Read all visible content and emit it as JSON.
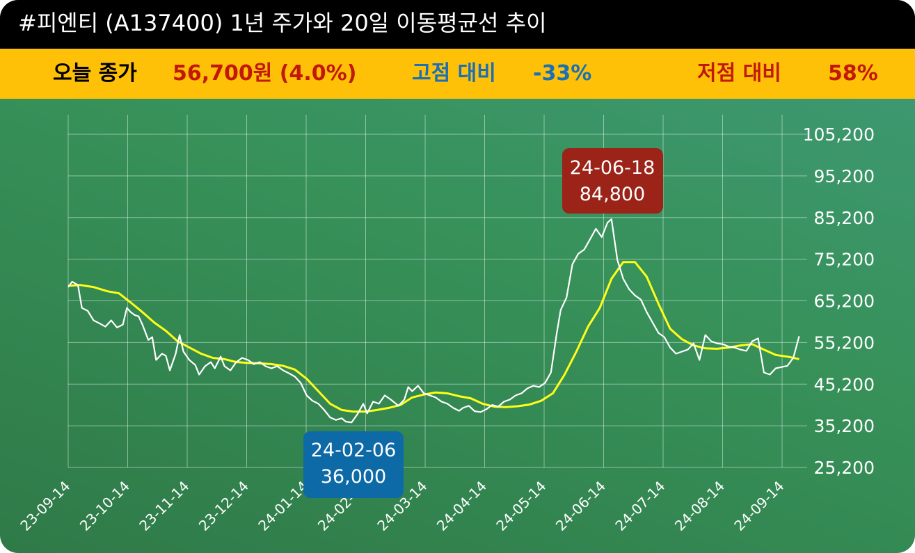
{
  "header": {
    "title": "#피엔티 (A137400) 1년 주가와 20일 이동평균선 추이"
  },
  "summary": {
    "close_label": "오늘 종가",
    "close_value": "56,700원 (4.0%)",
    "high_label": "고점 대비",
    "high_value": "-33%",
    "low_label": "저점 대비",
    "low_value": "58%"
  },
  "colors": {
    "title_bg": "#000000",
    "info_bg": "#ffc107",
    "close_label": "#000000",
    "close_value": "#c21807",
    "high_color": "#1a6fb5",
    "low_color": "#c21807",
    "price_line": "#ffffff",
    "ma_line": "#ffff1a",
    "high_box": "#9b2318",
    "low_box": "#0e6aa6"
  },
  "chart_data": {
    "type": "line",
    "x_ticks": [
      "23-09-14",
      "23-10-14",
      "23-11-14",
      "23-12-14",
      "24-01-14",
      "24-02-14",
      "24-03-14",
      "24-04-14",
      "24-05-14",
      "24-06-14",
      "24-07-14",
      "24-08-14",
      "24-09-14"
    ],
    "y_ticks": [
      "105,200",
      "95,200",
      "85,200",
      "75,200",
      "65,200",
      "55,200",
      "45,200",
      "35,200",
      "25,200"
    ],
    "ylim": [
      25200,
      105200
    ],
    "x_start": "2023-09-14",
    "series": [
      {
        "values": [
          [
            "2023-09-14",
            68500
          ],
          [
            "2023-09-16",
            69800
          ],
          [
            "2023-09-19",
            69000
          ],
          [
            "2023-09-21",
            63500
          ],
          [
            "2023-09-24",
            62800
          ],
          [
            "2023-09-27",
            60500
          ],
          [
            "2023-09-30",
            59800
          ],
          [
            "2023-10-03",
            59000
          ],
          [
            "2023-10-06",
            60500
          ],
          [
            "2023-10-09",
            58800
          ],
          [
            "2023-10-12",
            59500
          ],
          [
            "2023-10-14",
            63500
          ],
          [
            "2023-10-16",
            62500
          ],
          [
            "2023-10-18",
            61800
          ],
          [
            "2023-10-20",
            61500
          ],
          [
            "2023-10-22",
            59500
          ],
          [
            "2023-10-25",
            55800
          ],
          [
            "2023-10-27",
            56500
          ],
          [
            "2023-10-29",
            51000
          ],
          [
            "2023-11-01",
            52500
          ],
          [
            "2023-11-03",
            52000
          ],
          [
            "2023-11-05",
            48500
          ],
          [
            "2023-11-08",
            52500
          ],
          [
            "2023-11-10",
            57000
          ],
          [
            "2023-11-12",
            53000
          ],
          [
            "2023-11-15",
            51000
          ],
          [
            "2023-11-18",
            49800
          ],
          [
            "2023-11-20",
            47500
          ],
          [
            "2023-11-23",
            49500
          ],
          [
            "2023-11-26",
            50500
          ],
          [
            "2023-11-28",
            49000
          ],
          [
            "2023-12-01",
            51800
          ],
          [
            "2023-12-03",
            49500
          ],
          [
            "2023-12-06",
            48500
          ],
          [
            "2023-12-09",
            50500
          ],
          [
            "2023-12-12",
            51500
          ],
          [
            "2023-12-15",
            51000
          ],
          [
            "2023-12-18",
            50000
          ],
          [
            "2023-12-21",
            50500
          ],
          [
            "2023-12-24",
            49500
          ],
          [
            "2023-12-27",
            49000
          ],
          [
            "2023-12-30",
            49500
          ],
          [
            "2024-01-02",
            48500
          ],
          [
            "2024-01-05",
            47800
          ],
          [
            "2024-01-08",
            47000
          ],
          [
            "2024-01-11",
            45500
          ],
          [
            "2024-01-14",
            42500
          ],
          [
            "2024-01-17",
            41200
          ],
          [
            "2024-01-20",
            40500
          ],
          [
            "2024-01-23",
            39000
          ],
          [
            "2024-01-26",
            37200
          ],
          [
            "2024-01-29",
            36600
          ],
          [
            "2024-02-01",
            37000
          ],
          [
            "2024-02-03",
            36200
          ],
          [
            "2024-02-06",
            36000
          ],
          [
            "2024-02-09",
            38000
          ],
          [
            "2024-02-12",
            40500
          ],
          [
            "2024-02-14",
            38200
          ],
          [
            "2024-02-17",
            41000
          ],
          [
            "2024-02-20",
            40500
          ],
          [
            "2024-02-23",
            42500
          ],
          [
            "2024-02-26",
            41500
          ],
          [
            "2024-03-01",
            40000
          ],
          [
            "2024-03-04",
            41500
          ],
          [
            "2024-03-06",
            44500
          ],
          [
            "2024-03-08",
            43500
          ],
          [
            "2024-03-11",
            44800
          ],
          [
            "2024-03-14",
            43000
          ],
          [
            "2024-03-17",
            42500
          ],
          [
            "2024-03-20",
            42000
          ],
          [
            "2024-03-23",
            41000
          ],
          [
            "2024-03-26",
            40500
          ],
          [
            "2024-03-29",
            39500
          ],
          [
            "2024-04-01",
            38800
          ],
          [
            "2024-04-03",
            39500
          ],
          [
            "2024-04-06",
            40000
          ],
          [
            "2024-04-09",
            38700
          ],
          [
            "2024-04-12",
            38500
          ],
          [
            "2024-04-15",
            39200
          ],
          [
            "2024-04-18",
            40200
          ],
          [
            "2024-04-21",
            39800
          ],
          [
            "2024-04-24",
            41000
          ],
          [
            "2024-04-27",
            41500
          ],
          [
            "2024-04-30",
            42500
          ],
          [
            "2024-05-03",
            43000
          ],
          [
            "2024-05-06",
            44200
          ],
          [
            "2024-05-09",
            44800
          ],
          [
            "2024-05-12",
            44500
          ],
          [
            "2024-05-15",
            45500
          ],
          [
            "2024-05-18",
            48000
          ],
          [
            "2024-05-21",
            57500
          ],
          [
            "2024-05-23",
            63000
          ],
          [
            "2024-05-26",
            66000
          ],
          [
            "2024-05-29",
            74000
          ],
          [
            "2024-06-01",
            76500
          ],
          [
            "2024-06-04",
            77500
          ],
          [
            "2024-06-07",
            80000
          ],
          [
            "2024-06-10",
            82500
          ],
          [
            "2024-06-13",
            80500
          ],
          [
            "2024-06-16",
            84000
          ],
          [
            "2024-06-18",
            84800
          ],
          [
            "2024-06-21",
            75000
          ],
          [
            "2024-06-24",
            70500
          ],
          [
            "2024-06-27",
            68000
          ],
          [
            "2024-06-30",
            66500
          ],
          [
            "2024-07-03",
            65500
          ],
          [
            "2024-07-06",
            62500
          ],
          [
            "2024-07-09",
            60000
          ],
          [
            "2024-07-12",
            57500
          ],
          [
            "2024-07-15",
            56500
          ],
          [
            "2024-07-18",
            54000
          ],
          [
            "2024-07-21",
            52500
          ],
          [
            "2024-07-24",
            53000
          ],
          [
            "2024-07-27",
            53500
          ],
          [
            "2024-07-30",
            55000
          ],
          [
            "2024-08-02",
            51000
          ],
          [
            "2024-08-05",
            57000
          ],
          [
            "2024-08-08",
            55500
          ],
          [
            "2024-08-11",
            55000
          ],
          [
            "2024-08-14",
            54800
          ],
          [
            "2024-08-17",
            54200
          ],
          [
            "2024-08-20",
            54000
          ],
          [
            "2024-08-23",
            53500
          ],
          [
            "2024-08-26",
            53200
          ],
          [
            "2024-08-29",
            55500
          ],
          [
            "2024-09-01",
            56200
          ],
          [
            "2024-09-04",
            48000
          ],
          [
            "2024-09-07",
            47500
          ],
          [
            "2024-09-10",
            49000
          ],
          [
            "2024-09-13",
            49300
          ],
          [
            "2024-09-16",
            49600
          ],
          [
            "2024-09-19",
            51500
          ],
          [
            "2024-09-22",
            56700
          ]
        ]
      },
      {
        "values": [
          [
            "2023-09-14",
            68800
          ],
          [
            "2023-09-20",
            69000
          ],
          [
            "2023-09-27",
            68500
          ],
          [
            "2023-10-04",
            67500
          ],
          [
            "2023-10-10",
            67000
          ],
          [
            "2023-10-16",
            64800
          ],
          [
            "2023-10-22",
            62500
          ],
          [
            "2023-10-28",
            60000
          ],
          [
            "2023-11-03",
            58000
          ],
          [
            "2023-11-09",
            55500
          ],
          [
            "2023-11-15",
            54000
          ],
          [
            "2023-11-21",
            52500
          ],
          [
            "2023-11-27",
            51500
          ],
          [
            "2023-12-03",
            51200
          ],
          [
            "2023-12-09",
            50500
          ],
          [
            "2023-12-15",
            50300
          ],
          [
            "2023-12-21",
            50200
          ],
          [
            "2023-12-27",
            50000
          ],
          [
            "2024-01-02",
            49600
          ],
          [
            "2024-01-08",
            48700
          ],
          [
            "2024-01-14",
            46500
          ],
          [
            "2024-01-20",
            43500
          ],
          [
            "2024-01-26",
            40500
          ],
          [
            "2024-02-01",
            39000
          ],
          [
            "2024-02-07",
            38600
          ],
          [
            "2024-02-13",
            38600
          ],
          [
            "2024-02-19",
            39000
          ],
          [
            "2024-02-25",
            39500
          ],
          [
            "2024-03-02",
            40200
          ],
          [
            "2024-03-08",
            42000
          ],
          [
            "2024-03-14",
            42700
          ],
          [
            "2024-03-20",
            43200
          ],
          [
            "2024-03-26",
            43000
          ],
          [
            "2024-04-01",
            42300
          ],
          [
            "2024-04-07",
            41800
          ],
          [
            "2024-04-13",
            40500
          ],
          [
            "2024-04-19",
            39800
          ],
          [
            "2024-04-25",
            39700
          ],
          [
            "2024-05-01",
            39900
          ],
          [
            "2024-05-07",
            40300
          ],
          [
            "2024-05-13",
            41200
          ],
          [
            "2024-05-19",
            43000
          ],
          [
            "2024-05-25",
            47500
          ],
          [
            "2024-05-31",
            53000
          ],
          [
            "2024-06-06",
            59000
          ],
          [
            "2024-06-12",
            63500
          ],
          [
            "2024-06-18",
            70500
          ],
          [
            "2024-06-24",
            74500
          ],
          [
            "2024-06-30",
            74500
          ],
          [
            "2024-07-06",
            71000
          ],
          [
            "2024-07-12",
            64500
          ],
          [
            "2024-07-18",
            58500
          ],
          [
            "2024-07-24",
            56000
          ],
          [
            "2024-07-30",
            54500
          ],
          [
            "2024-08-05",
            53800
          ],
          [
            "2024-08-11",
            53700
          ],
          [
            "2024-08-17",
            54000
          ],
          [
            "2024-08-23",
            54500
          ],
          [
            "2024-08-29",
            54800
          ],
          [
            "2024-09-04",
            53500
          ],
          [
            "2024-09-10",
            52200
          ],
          [
            "2024-09-16",
            51800
          ],
          [
            "2024-09-22",
            51200
          ]
        ]
      }
    ],
    "annotations": [
      {
        "label": "24-06-18",
        "value_label": "84,800",
        "date": "2024-06-18",
        "price": 84800,
        "kind": "high"
      },
      {
        "label": "24-02-06",
        "value_label": "36,000",
        "date": "2024-02-06",
        "price": 36000,
        "kind": "low"
      }
    ],
    "grid": true
  }
}
